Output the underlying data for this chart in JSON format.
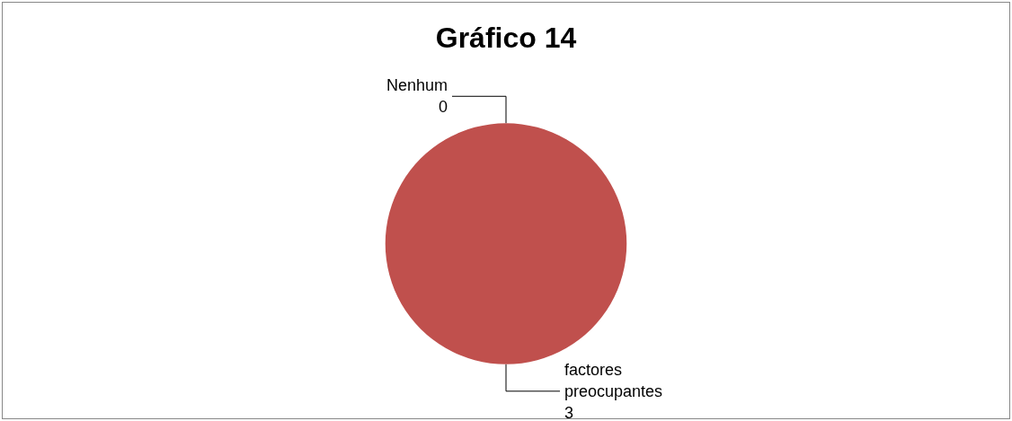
{
  "chart_data": {
    "type": "pie",
    "title": "Gráfico 14",
    "categories": [
      "Nenhum",
      "factores\npreocupantes"
    ],
    "values": [
      0,
      3
    ],
    "colors": [
      "#4f81bd",
      "#c0504d"
    ],
    "value_labels": [
      "0",
      "3"
    ],
    "legend": false
  }
}
